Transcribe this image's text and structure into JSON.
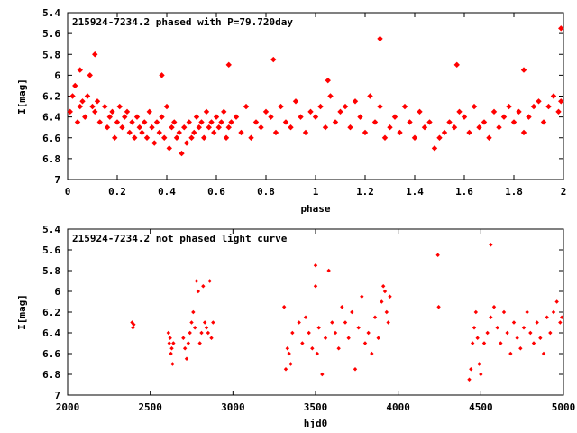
{
  "chart_data": [
    {
      "type": "scatter",
      "title": "215924-7234.2 phased with P=79.720day",
      "xlabel": "phase",
      "ylabel": "I[mag]",
      "xlim": [
        0,
        2
      ],
      "ylim": [
        7.0,
        5.4
      ],
      "y_inverted": true,
      "grid": false,
      "marker_color": "#ff0000",
      "marker": "filled-diamond",
      "xticks": [
        "0",
        "0.2",
        "0.4",
        "0.6",
        "0.8",
        "1",
        "1.2",
        "1.4",
        "1.6",
        "1.8",
        "2"
      ],
      "yticks": [
        "5.4",
        "5.6",
        "5.8",
        "6",
        "6.2",
        "6.4",
        "6.6",
        "6.8",
        "7"
      ],
      "series": [
        {
          "x": [
            0.01,
            0.02,
            0.03,
            0.04,
            0.05,
            0.06,
            0.07,
            0.08,
            0.09,
            0.1,
            0.11,
            0.12,
            0.13,
            0.15,
            0.16,
            0.17,
            0.18,
            0.19,
            0.2,
            0.21,
            0.22,
            0.23,
            0.24,
            0.25,
            0.26,
            0.27,
            0.28,
            0.29,
            0.3,
            0.31,
            0.32,
            0.33,
            0.34,
            0.35,
            0.36,
            0.37,
            0.38,
            0.39,
            0.4,
            0.41,
            0.42,
            0.43,
            0.44,
            0.45,
            0.46,
            0.47,
            0.48,
            0.49,
            0.5,
            0.51,
            0.52,
            0.53,
            0.54,
            0.55,
            0.56,
            0.57,
            0.58,
            0.59,
            0.6,
            0.61,
            0.62,
            0.63,
            0.64,
            0.65,
            0.66,
            0.68,
            0.7,
            0.72,
            0.74,
            0.76,
            0.78,
            0.8,
            0.82,
            0.84,
            0.86,
            0.88,
            0.9,
            0.92,
            0.94,
            0.96,
            0.98,
            1.0,
            1.02,
            1.04,
            1.06,
            1.08,
            1.1,
            1.12,
            1.14,
            1.16,
            1.18,
            1.2,
            1.22,
            1.24,
            1.26,
            1.28,
            1.3,
            1.32,
            1.34,
            1.36,
            1.38,
            1.4,
            1.42,
            1.44,
            1.46,
            1.48,
            1.5,
            1.52,
            1.54,
            1.56,
            1.58,
            1.6,
            1.62,
            1.64,
            1.66,
            1.68,
            1.7,
            1.72,
            1.74,
            1.76,
            1.78,
            1.8,
            1.82,
            1.84,
            1.86,
            1.88,
            1.9,
            1.92,
            1.94,
            1.96,
            1.98,
            1.99,
            0.05,
            0.11,
            0.38,
            0.65,
            0.83,
            1.05,
            1.26,
            1.57,
            1.84,
            1.99
          ],
          "y": [
            6.35,
            6.2,
            6.1,
            6.45,
            6.3,
            6.25,
            6.4,
            6.2,
            6.0,
            6.3,
            6.35,
            6.25,
            6.45,
            6.3,
            6.5,
            6.4,
            6.35,
            6.6,
            6.45,
            6.3,
            6.5,
            6.4,
            6.35,
            6.55,
            6.45,
            6.6,
            6.4,
            6.5,
            6.55,
            6.45,
            6.6,
            6.35,
            6.5,
            6.65,
            6.45,
            6.55,
            6.4,
            6.6,
            6.3,
            6.7,
            6.5,
            6.45,
            6.6,
            6.55,
            6.75,
            6.5,
            6.65,
            6.45,
            6.6,
            6.55,
            6.4,
            6.5,
            6.45,
            6.6,
            6.35,
            6.5,
            6.45,
            6.55,
            6.4,
            6.5,
            6.45,
            6.35,
            6.6,
            6.5,
            6.45,
            6.4,
            6.55,
            6.3,
            6.6,
            6.45,
            6.5,
            6.35,
            6.4,
            6.55,
            6.3,
            6.45,
            6.5,
            6.25,
            6.4,
            6.55,
            6.35,
            6.4,
            6.3,
            6.5,
            6.2,
            6.45,
            6.35,
            6.3,
            6.5,
            6.25,
            6.4,
            6.55,
            6.2,
            6.45,
            6.3,
            6.6,
            6.5,
            6.4,
            6.55,
            6.3,
            6.45,
            6.6,
            6.35,
            6.5,
            6.45,
            6.7,
            6.6,
            6.55,
            6.45,
            6.5,
            6.35,
            6.4,
            6.55,
            6.3,
            6.5,
            6.45,
            6.6,
            6.35,
            6.5,
            6.4,
            6.3,
            6.45,
            6.35,
            6.55,
            6.4,
            6.3,
            6.25,
            6.45,
            6.3,
            6.2,
            6.35,
            6.25,
            5.95,
            5.8,
            6.0,
            5.9,
            5.85,
            6.05,
            5.65,
            5.9,
            5.95,
            5.55
          ],
          "name": ""
        }
      ]
    },
    {
      "type": "scatter",
      "title": "215924-7234.2 not phased light curve",
      "xlabel": "hjd0",
      "ylabel": "I[mag]",
      "xlim": [
        2000,
        5000
      ],
      "ylim": [
        7.0,
        5.4
      ],
      "y_inverted": true,
      "grid": false,
      "marker_color": "#ff0000",
      "marker": "small-diamond",
      "xticks": [
        "2000",
        "2500",
        "3000",
        "3500",
        "4000",
        "4500",
        "5000"
      ],
      "yticks": [
        "5.4",
        "5.6",
        "5.8",
        "6",
        "6.2",
        "6.4",
        "6.6",
        "6.8",
        "7"
      ],
      "series": [
        {
          "x": [
            2390,
            2395,
            2400,
            2610,
            2615,
            2620,
            2625,
            2630,
            2635,
            2640,
            2700,
            2710,
            2720,
            2730,
            2740,
            2750,
            2760,
            2770,
            2780,
            2790,
            2800,
            2810,
            2820,
            2830,
            2840,
            2850,
            2860,
            2870,
            2880,
            3310,
            3320,
            3330,
            3340,
            3350,
            3360,
            3400,
            3420,
            3440,
            3460,
            3480,
            3500,
            3510,
            3520,
            3540,
            3560,
            3580,
            3600,
            3620,
            3640,
            3660,
            3680,
            3700,
            3720,
            3740,
            3760,
            3780,
            3800,
            3820,
            3840,
            3860,
            3880,
            3900,
            3910,
            3920,
            3930,
            3940,
            3950,
            4240,
            4245,
            4430,
            4440,
            4450,
            4460,
            4470,
            4480,
            4490,
            4500,
            4520,
            4540,
            4560,
            4580,
            4600,
            4620,
            4640,
            4660,
            4680,
            4700,
            4720,
            4740,
            4760,
            4780,
            4800,
            4820,
            4840,
            4860,
            4880,
            4900,
            4920,
            4940,
            4960,
            4980,
            4990,
            3500,
            4560
          ],
          "y": [
            6.3,
            6.35,
            6.32,
            6.4,
            6.5,
            6.45,
            6.6,
            6.55,
            6.7,
            6.5,
            6.45,
            6.55,
            6.65,
            6.5,
            6.4,
            6.3,
            6.2,
            6.35,
            5.9,
            6.0,
            6.5,
            6.4,
            5.95,
            6.3,
            6.35,
            6.4,
            5.9,
            6.45,
            6.3,
            6.15,
            6.75,
            6.55,
            6.6,
            6.7,
            6.4,
            6.3,
            6.5,
            6.25,
            6.4,
            6.55,
            5.95,
            6.6,
            6.35,
            6.8,
            6.45,
            5.8,
            6.3,
            6.4,
            6.55,
            6.15,
            6.3,
            6.45,
            6.2,
            6.75,
            6.35,
            6.05,
            6.5,
            6.4,
            6.6,
            6.25,
            6.45,
            6.1,
            5.95,
            6.0,
            6.2,
            6.3,
            6.05,
            5.65,
            6.15,
            6.85,
            6.75,
            6.5,
            6.35,
            6.2,
            6.45,
            6.7,
            6.8,
            6.5,
            6.4,
            6.25,
            6.15,
            6.35,
            6.5,
            6.2,
            6.4,
            6.6,
            6.3,
            6.45,
            6.55,
            6.35,
            6.2,
            6.4,
            6.5,
            6.3,
            6.45,
            6.6,
            6.25,
            6.4,
            6.2,
            6.1,
            6.3,
            6.25,
            5.75,
            5.55
          ],
          "name": ""
        }
      ]
    }
  ]
}
